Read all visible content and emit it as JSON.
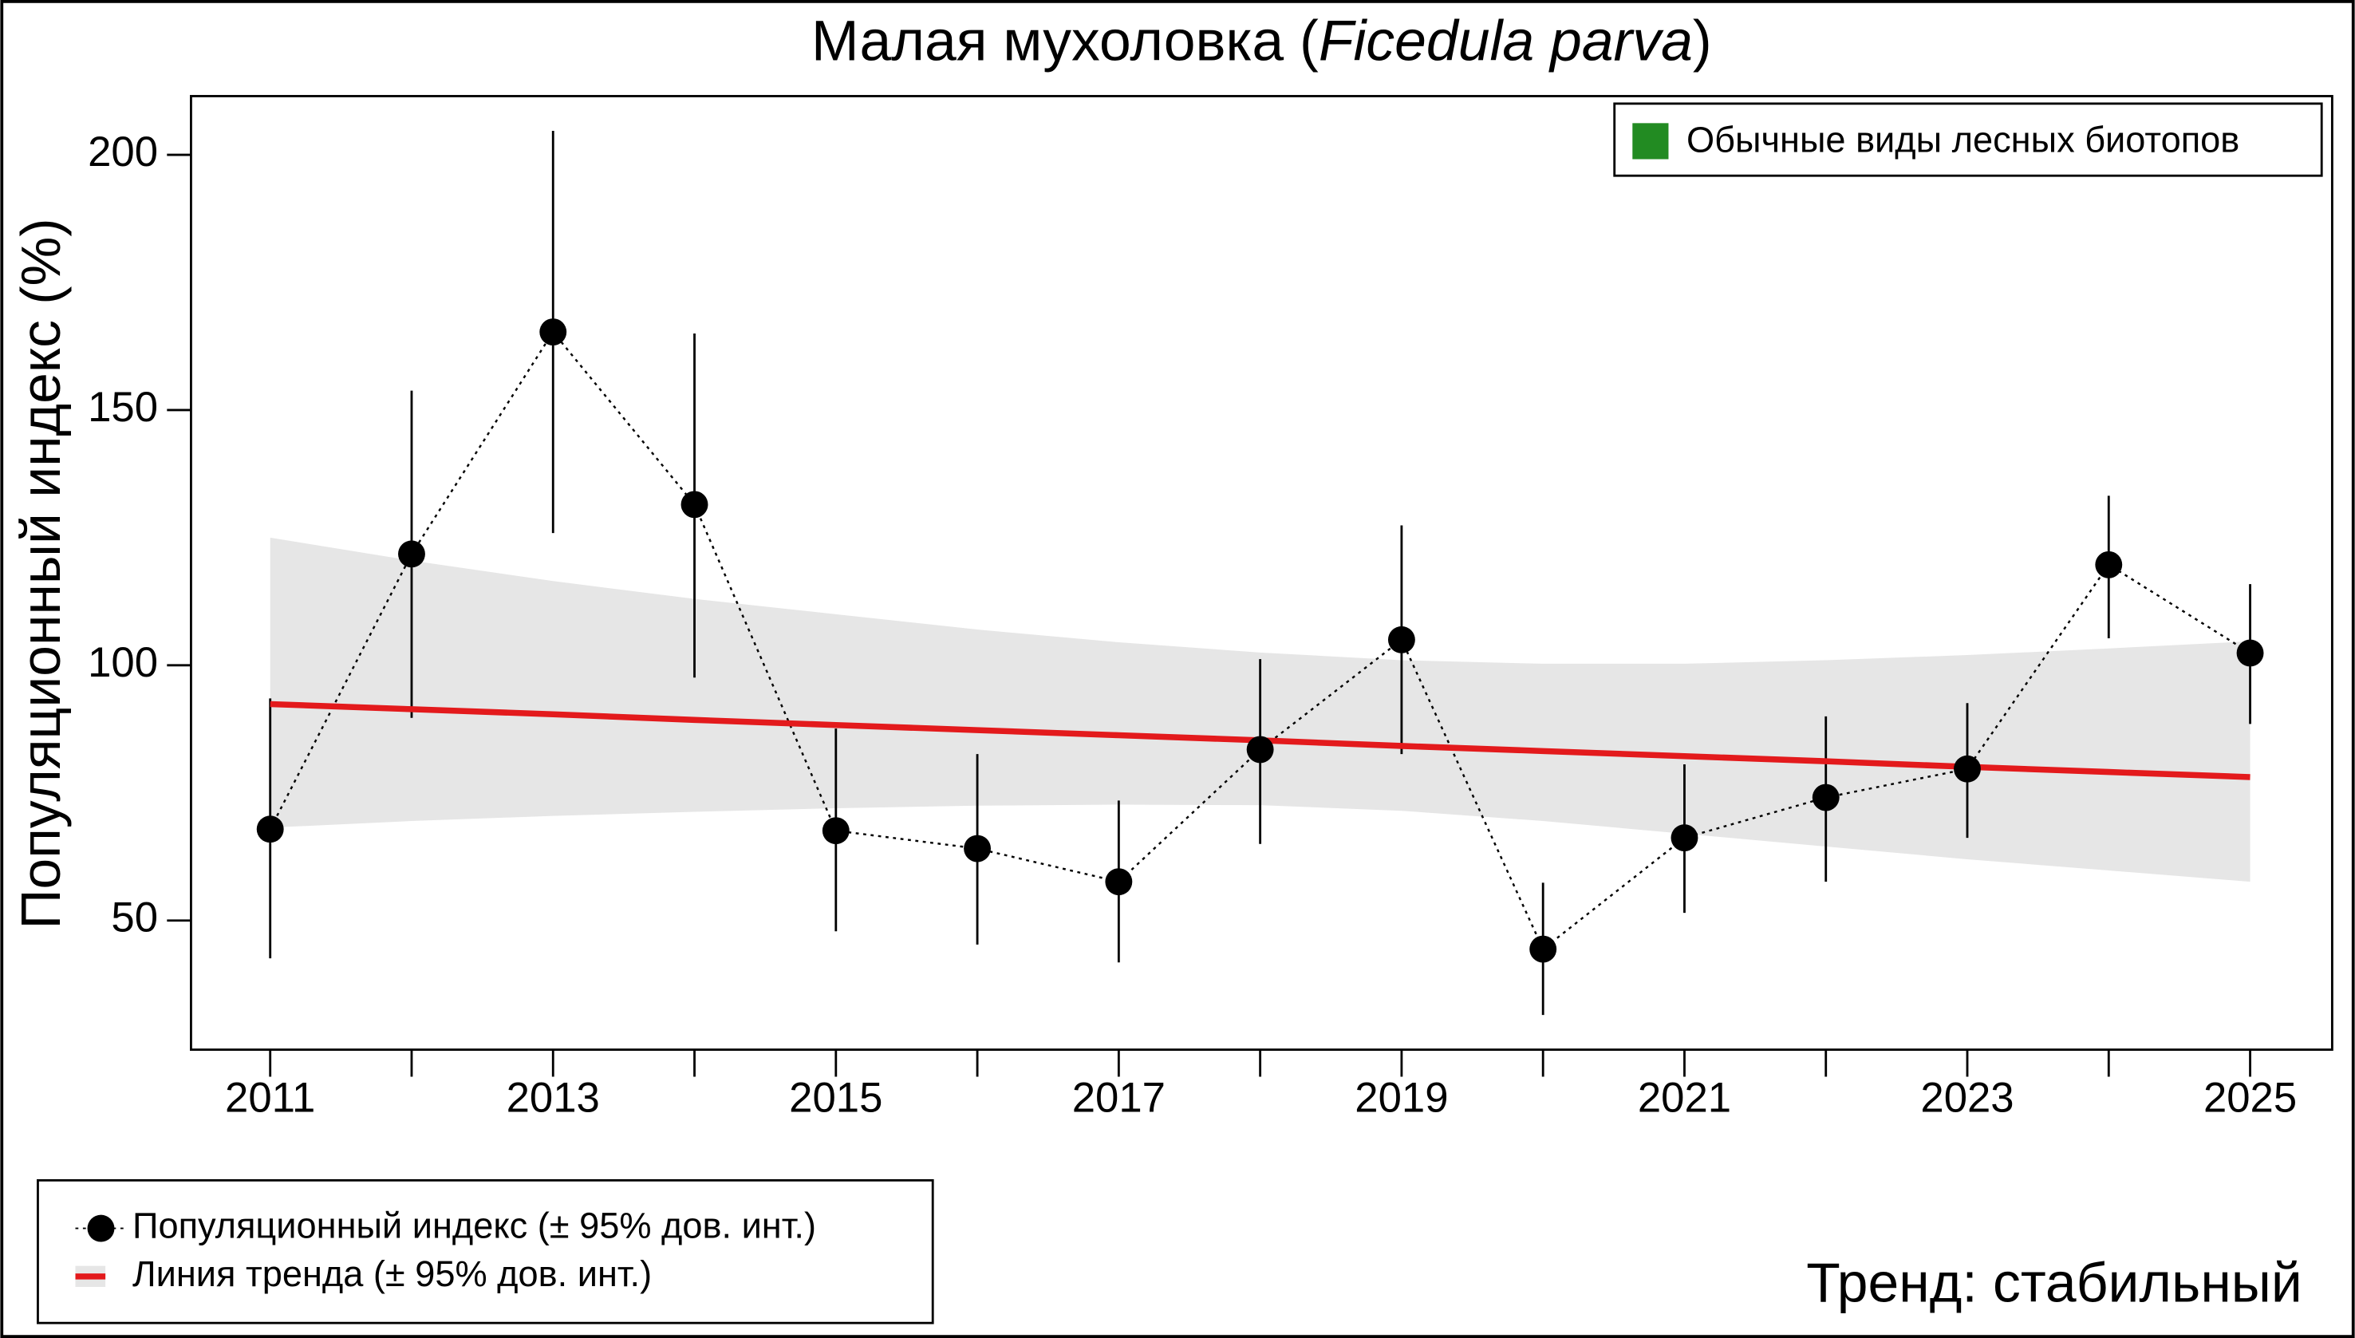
{
  "chart_data": {
    "type": "line",
    "title": [
      "Малая мухоловка (",
      "Ficedula parva",
      ")"
    ],
    "y_label": "Популяционный индекс (%)",
    "annotation": "Тренд: стабильный",
    "group": {
      "name": "Обычные виды лесных биотопов",
      "color": "#228b22"
    },
    "x": [
      2011,
      2012,
      2013,
      2014,
      2015,
      2016,
      2017,
      2018,
      2019,
      2020,
      2021,
      2022,
      2023,
      2024,
      2025
    ],
    "series": [
      {
        "name": "Популяционный индекс (± 95% дов. инт.)",
        "color": "#000000",
        "values": [
          67.9,
          121.8,
          165.3,
          131.5,
          67.6,
          64.1,
          57.6,
          83.5,
          105.0,
          44.4,
          66.2,
          74.1,
          79.7,
          119.7,
          102.4
        ],
        "lower": [
          42.6,
          89.7,
          125.9,
          97.6,
          47.9,
          45.3,
          41.8,
          65.0,
          82.6,
          31.5,
          51.5,
          57.6,
          66.2,
          105.3,
          88.5
        ],
        "upper": [
          93.5,
          153.8,
          204.7,
          165.0,
          87.6,
          82.6,
          73.5,
          101.2,
          127.4,
          57.4,
          80.6,
          90.0,
          92.6,
          133.2,
          115.9
        ]
      },
      {
        "name": "Линия тренда (± 95% дов. инт.)",
        "color": "#e31a1c",
        "band_color": "#e6e6e6",
        "values": [
          92.4,
          91.4,
          90.4,
          89.3,
          88.3,
          87.3,
          86.3,
          85.3,
          84.2,
          83.2,
          82.2,
          81.2,
          80.1,
          79.1,
          78.1
        ],
        "band_lower": [
          68.2,
          69.5,
          70.5,
          71.3,
          72.0,
          72.5,
          72.7,
          72.6,
          71.5,
          69.5,
          67.0,
          64.5,
          62.0,
          59.8,
          57.6
        ],
        "band_upper": [
          125.0,
          120.5,
          116.5,
          113.0,
          110.0,
          107.0,
          104.5,
          102.5,
          101.0,
          100.3,
          100.3,
          101.0,
          102.0,
          103.3,
          104.7
        ]
      }
    ],
    "xlim": [
      2010.44,
      2025.58
    ],
    "xticks": [
      2011,
      2013,
      2015,
      2017,
      2019,
      2021,
      2023,
      2025
    ],
    "ylim": [
      24.7,
      211.5
    ],
    "yticks": [
      50,
      100,
      150,
      200
    ],
    "annotation_color": "#0000cc"
  }
}
